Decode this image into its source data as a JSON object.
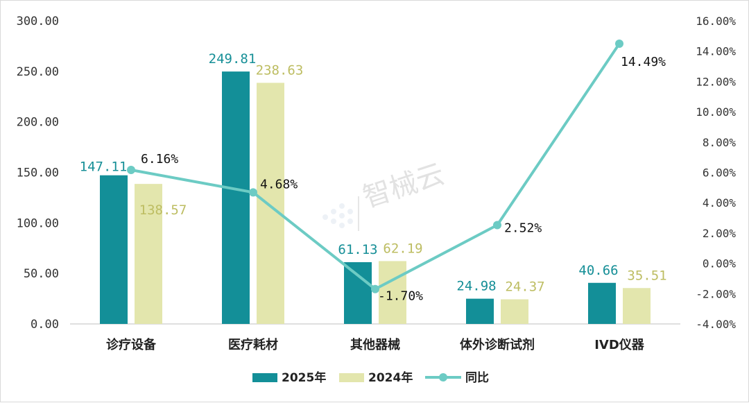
{
  "chart_data": {
    "type": "bar+line",
    "categories": [
      "诊疗设备",
      "医疗耗材",
      "其他器械",
      "体外诊断试剂",
      "IVD仪器"
    ],
    "series": [
      {
        "name": "2025年",
        "kind": "bar",
        "axis": "left",
        "values": [
          147.11,
          249.81,
          61.13,
          24.98,
          40.66
        ],
        "labels": [
          "147.11",
          "249.81",
          "61.13",
          "24.98",
          "40.66"
        ]
      },
      {
        "name": "2024年",
        "kind": "bar",
        "axis": "left",
        "values": [
          138.57,
          238.63,
          62.19,
          24.37,
          35.51
        ],
        "labels": [
          "138.57",
          "238.63",
          "62.19",
          "24.37",
          "35.51"
        ]
      },
      {
        "name": "同比",
        "kind": "line",
        "axis": "right",
        "values": [
          6.16,
          4.68,
          -1.7,
          2.52,
          14.49
        ],
        "labels": [
          "6.16%",
          "4.68%",
          "-1.70%",
          "2.52%",
          "14.49%"
        ]
      }
    ],
    "left_axis": {
      "ylim": [
        0,
        300
      ],
      "ticks": [
        0,
        50,
        100,
        150,
        200,
        250,
        300
      ],
      "tick_labels": [
        "0.00",
        "50.00",
        "100.00",
        "150.00",
        "200.00",
        "250.00",
        "300.00"
      ]
    },
    "right_axis": {
      "ylim": [
        -4,
        16
      ],
      "ticks": [
        -4,
        -2,
        0,
        2,
        4,
        6,
        8,
        10,
        12,
        14,
        16
      ],
      "tick_labels": [
        "-4.00%",
        "-2.00%",
        "0.00%",
        "2.00%",
        "4.00%",
        "6.00%",
        "8.00%",
        "10.00%",
        "12.00%",
        "14.00%",
        "16.00%"
      ]
    },
    "legend_position": "bottom-center",
    "grid": false
  },
  "watermark": "智械云",
  "colors": {
    "bar_2025": "#138f98",
    "bar_2024": "#e3e6ad",
    "line": "#6ccbc4",
    "label_2025": "#168f97",
    "label_2024": "#bdbd62"
  }
}
